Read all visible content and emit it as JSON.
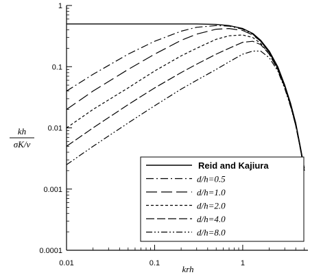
{
  "chart_data": {
    "type": "line",
    "xlabel": "krh",
    "ylabel_num": "kh",
    "ylabel_den": "σK/ν",
    "xscale": "log",
    "yscale": "log",
    "xlim": [
      0.01,
      5.5
    ],
    "ylim": [
      0.0001,
      1
    ],
    "xticks": [
      0.01,
      0.1,
      1
    ],
    "xtick_labels": [
      "0.01",
      "0.1",
      "1"
    ],
    "yticks": [
      0.0001,
      0.001,
      0.01,
      0.1,
      1
    ],
    "ytick_labels": [
      "0.0001",
      "0.001",
      "0.01",
      "0.1",
      "1"
    ],
    "grid": false,
    "legend_position": "bottom-right",
    "series": [
      {
        "name": "Reid and Kajiura",
        "dash": "solid",
        "x": [
          0.01,
          0.05,
          0.1,
          0.2,
          0.3,
          0.5,
          0.7,
          1.0,
          1.3,
          1.6,
          2.0,
          2.5,
          3.0,
          3.5,
          4.0,
          4.5,
          5.0
        ],
        "y": [
          0.5,
          0.5,
          0.5,
          0.5,
          0.5,
          0.49,
          0.47,
          0.42,
          0.35,
          0.27,
          0.18,
          0.1,
          0.05,
          0.025,
          0.012,
          0.005,
          0.0022
        ]
      },
      {
        "name": "d/h=0.5",
        "dash": "dashdot",
        "x": [
          0.01,
          0.02,
          0.05,
          0.1,
          0.2,
          0.3,
          0.5,
          0.7,
          1.0,
          1.3,
          1.6,
          2.0,
          2.5,
          3.0,
          3.5,
          4.0,
          4.5,
          5.0
        ],
        "y": [
          0.04,
          0.075,
          0.16,
          0.26,
          0.38,
          0.44,
          0.47,
          0.46,
          0.41,
          0.34,
          0.26,
          0.17,
          0.095,
          0.048,
          0.024,
          0.011,
          0.0048,
          0.002
        ]
      },
      {
        "name": "d/h=1.0",
        "dash": "longdash",
        "x": [
          0.01,
          0.02,
          0.05,
          0.1,
          0.2,
          0.3,
          0.5,
          0.7,
          1.0,
          1.3,
          1.6,
          2.0,
          2.5,
          3.0,
          3.5,
          4.0,
          4.5,
          5.0
        ],
        "y": [
          0.02,
          0.04,
          0.09,
          0.16,
          0.27,
          0.34,
          0.41,
          0.42,
          0.39,
          0.33,
          0.26,
          0.17,
          0.095,
          0.048,
          0.024,
          0.011,
          0.0048,
          0.002
        ]
      },
      {
        "name": "d/h=2.0",
        "dash": "shortdash",
        "x": [
          0.01,
          0.02,
          0.05,
          0.1,
          0.2,
          0.3,
          0.5,
          0.7,
          1.0,
          1.3,
          1.6,
          2.0,
          2.5,
          3.0,
          3.5,
          4.0,
          4.5,
          5.0
        ],
        "y": [
          0.01,
          0.02,
          0.045,
          0.085,
          0.15,
          0.2,
          0.28,
          0.32,
          0.33,
          0.3,
          0.24,
          0.16,
          0.09,
          0.046,
          0.023,
          0.011,
          0.0047,
          0.002
        ]
      },
      {
        "name": "d/h=4.0",
        "dash": "medlongdash",
        "x": [
          0.01,
          0.02,
          0.05,
          0.1,
          0.2,
          0.3,
          0.5,
          0.7,
          1.0,
          1.3,
          1.6,
          2.0,
          2.5,
          3.0,
          3.5,
          4.0,
          4.5,
          5.0
        ],
        "y": [
          0.005,
          0.01,
          0.024,
          0.045,
          0.08,
          0.11,
          0.16,
          0.2,
          0.25,
          0.26,
          0.23,
          0.16,
          0.09,
          0.046,
          0.023,
          0.011,
          0.0047,
          0.002
        ]
      },
      {
        "name": "d/h=8.0",
        "dash": "dashdotdot",
        "x": [
          0.01,
          0.02,
          0.05,
          0.1,
          0.2,
          0.3,
          0.5,
          0.7,
          1.0,
          1.3,
          1.6,
          2.0,
          2.5,
          3.0,
          3.5,
          4.0,
          4.5,
          5.0
        ],
        "y": [
          0.0025,
          0.005,
          0.012,
          0.023,
          0.043,
          0.06,
          0.09,
          0.12,
          0.16,
          0.18,
          0.18,
          0.14,
          0.085,
          0.044,
          0.022,
          0.011,
          0.0046,
          0.002
        ]
      }
    ]
  }
}
